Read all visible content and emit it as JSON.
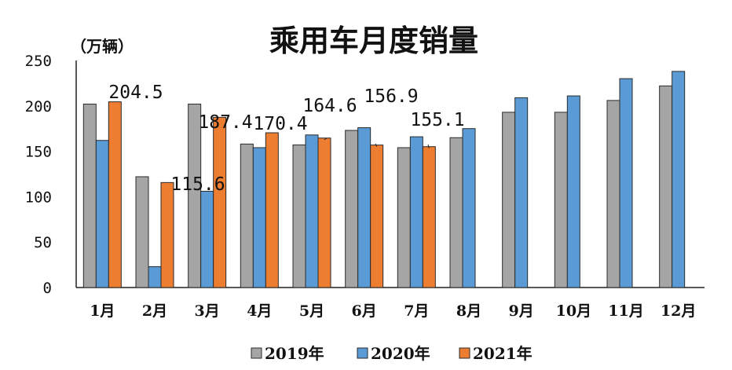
{
  "chart_data": {
    "type": "bar",
    "title": "乘用车月度销量",
    "unit_label": "（万辆）",
    "categories": [
      "1月",
      "2月",
      "3月",
      "4月",
      "5月",
      "6月",
      "7月",
      "8月",
      "9月",
      "10月",
      "11月",
      "12月"
    ],
    "ylim": [
      0,
      250
    ],
    "yticks": [
      0,
      50,
      100,
      150,
      200,
      250
    ],
    "grid": false,
    "legend_position": "bottom",
    "series": [
      {
        "name": "2019年",
        "color": "#a5a5a5",
        "values": [
          202,
          122,
          202,
          158,
          157,
          173,
          154,
          165,
          193,
          193,
          206,
          222
        ]
      },
      {
        "name": "2020年",
        "color": "#5b9bd5",
        "values": [
          162,
          23,
          106,
          154,
          168,
          176,
          166,
          175,
          209,
          211,
          230,
          238
        ]
      },
      {
        "name": "2021年",
        "color": "#ed7d31",
        "values": [
          204.5,
          115.6,
          187.4,
          170.4,
          164.6,
          156.9,
          155.1,
          null,
          null,
          null,
          null,
          null
        ]
      }
    ],
    "data_labels": [
      {
        "category": "1月",
        "text": "204.5"
      },
      {
        "category": "2月",
        "text": "115.6"
      },
      {
        "category": "3月",
        "text": "187.4"
      },
      {
        "category": "4月",
        "text": "170.4"
      },
      {
        "category": "5月",
        "text": "164.6"
      },
      {
        "category": "6月",
        "text": "156.9"
      },
      {
        "category": "7月",
        "text": "155.1"
      }
    ]
  }
}
